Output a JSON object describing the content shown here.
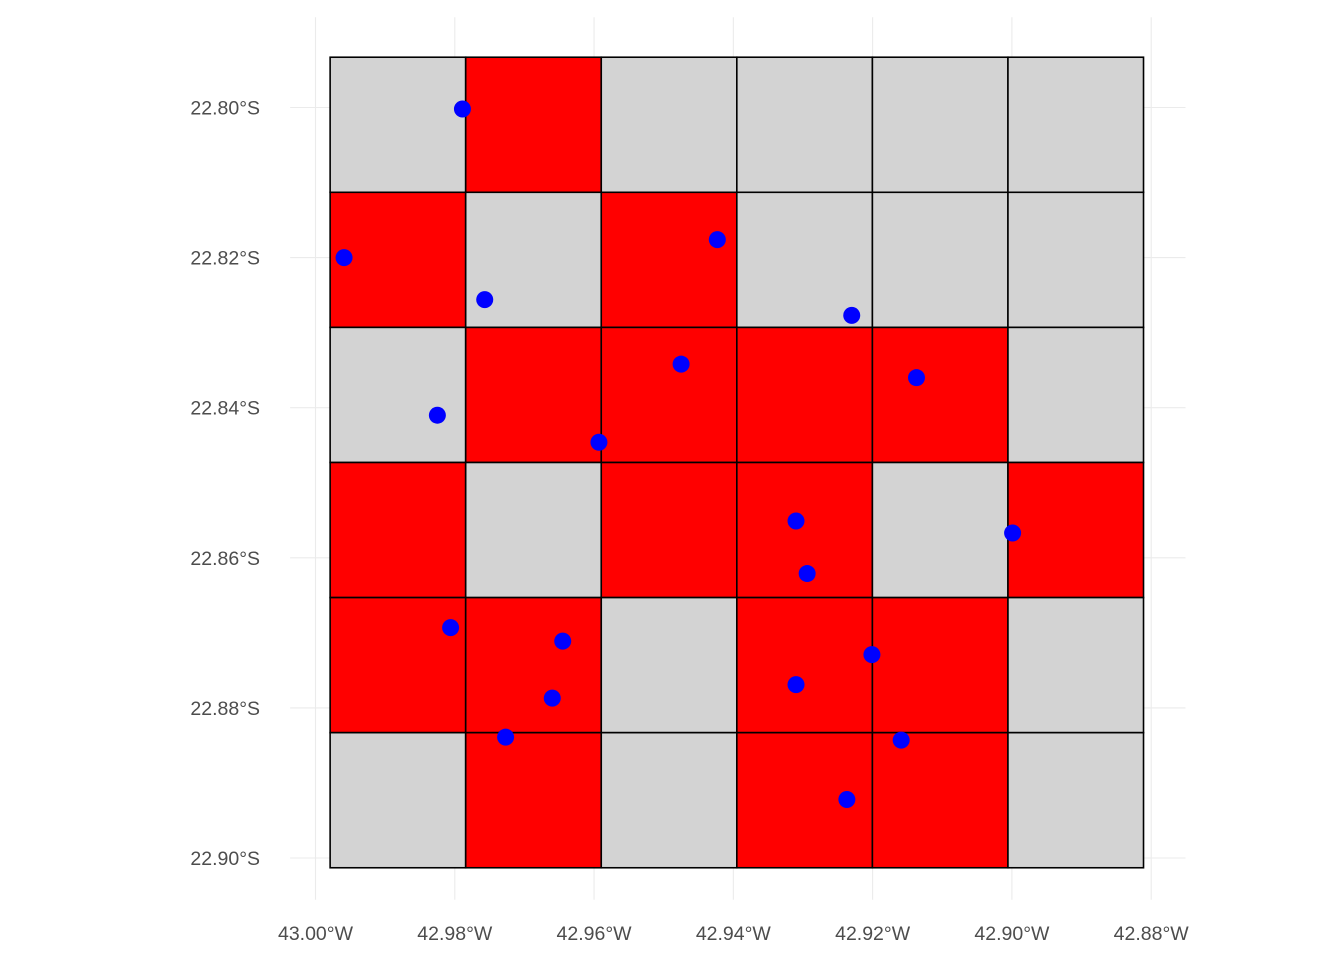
{
  "chart_data": {
    "type": "map",
    "x_ticks": [
      {
        "value": -43.0,
        "label": "43.00°W"
      },
      {
        "value": -42.98,
        "label": "42.98°W"
      },
      {
        "value": -42.96,
        "label": "42.96°W"
      },
      {
        "value": -42.94,
        "label": "42.94°W"
      },
      {
        "value": -42.92,
        "label": "42.92°W"
      },
      {
        "value": -42.9,
        "label": "42.90°W"
      },
      {
        "value": -42.88,
        "label": "42.88°W"
      }
    ],
    "y_ticks": [
      {
        "value": -22.8,
        "label": "22.80°S"
      },
      {
        "value": -22.82,
        "label": "22.82°S"
      },
      {
        "value": -22.84,
        "label": "22.84°S"
      },
      {
        "value": -22.86,
        "label": "22.86°S"
      },
      {
        "value": -22.88,
        "label": "22.88°S"
      },
      {
        "value": -22.9,
        "label": "22.90°S"
      }
    ],
    "grid": {
      "lon_min": -42.9979,
      "lon_max": -42.8811,
      "lat_min": -22.9013,
      "lat_max": -22.7933,
      "cols": 6,
      "rows": 6,
      "cells": [
        [
          0,
          1,
          0,
          0,
          0,
          0
        ],
        [
          1,
          0,
          1,
          0,
          0,
          0
        ],
        [
          0,
          1,
          1,
          1,
          1,
          0
        ],
        [
          1,
          0,
          1,
          1,
          0,
          1
        ],
        [
          1,
          1,
          0,
          1,
          1,
          0
        ],
        [
          0,
          1,
          0,
          1,
          1,
          0
        ]
      ],
      "cell_colors": {
        "0": "#d3d3d3",
        "1": "#ff0000"
      },
      "border_color": "#000000"
    },
    "points": {
      "color": "#0000ff",
      "coords": [
        [
          -42.9789,
          -22.8002
        ],
        [
          -42.9959,
          -22.82
        ],
        [
          -42.9423,
          -22.8176
        ],
        [
          -42.9757,
          -22.8256
        ],
        [
          -42.923,
          -22.8277
        ],
        [
          -42.9475,
          -22.8342
        ],
        [
          -42.9137,
          -22.836
        ],
        [
          -42.9825,
          -22.841
        ],
        [
          -42.9593,
          -22.8446
        ],
        [
          -42.931,
          -22.8551
        ],
        [
          -42.8999,
          -22.8567
        ],
        [
          -42.9294,
          -22.8621
        ],
        [
          -42.9806,
          -22.8693
        ],
        [
          -42.9645,
          -22.8711
        ],
        [
          -42.9201,
          -22.8729
        ],
        [
          -42.931,
          -22.8769
        ],
        [
          -42.966,
          -22.8787
        ],
        [
          -42.9727,
          -22.8839
        ],
        [
          -42.9159,
          -22.8843
        ],
        [
          -42.9237,
          -22.8922
        ]
      ]
    }
  }
}
